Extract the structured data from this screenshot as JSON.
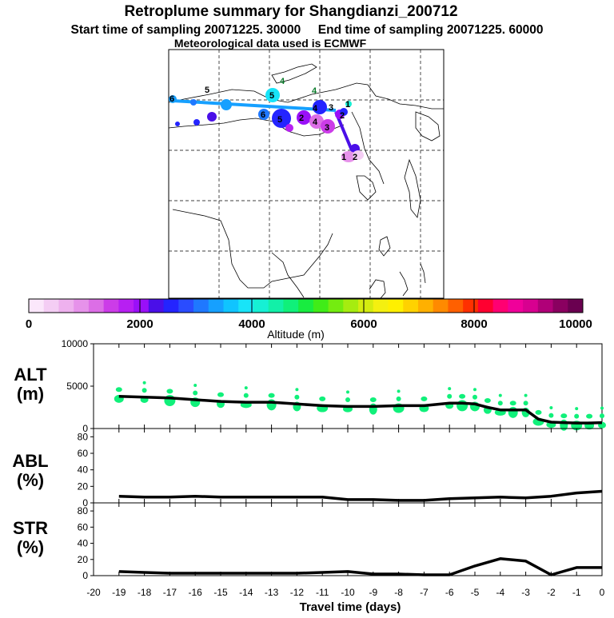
{
  "header": {
    "title": "Retroplume summary for Shangdianzi_200712",
    "line2": "Start time of sampling 20071225. 30000     End time of sampling 20071225. 60000",
    "line3": "Meteorological data used is ECMWF"
  },
  "colorbar": {
    "label": "Altitude  (m)",
    "ticks": [
      "0",
      "2000",
      "4000",
      "6000",
      "8000",
      "10000"
    ],
    "colors": [
      "#fbe7fb",
      "#f4cdf4",
      "#eeb1ee",
      "#e692ea",
      "#dc6ee6",
      "#cc3ce8",
      "#b71ff2",
      "#9a10f8",
      "#4a0fe8",
      "#2424ff",
      "#2a4cff",
      "#1f78ff",
      "#16a0ff",
      "#10c4ff",
      "#18e4f8",
      "#16f0d4",
      "#12f0a8",
      "#10f07a",
      "#18ec40",
      "#40ec18",
      "#74ec10",
      "#a6ec10",
      "#d4ec10",
      "#f4f010",
      "#fff000",
      "#ffd200",
      "#ffb000",
      "#ff8a00",
      "#ff6000",
      "#ff3000",
      "#ff0030",
      "#ff0072",
      "#f0009a",
      "#d80090",
      "#b00078",
      "#8a0060",
      "#6a0050"
    ]
  },
  "map": {
    "track_labels": [
      "6",
      "5",
      "4",
      "4",
      "5",
      "6",
      "3",
      "2",
      "1",
      "2",
      "4",
      "4",
      "5",
      "3",
      "1",
      "2"
    ]
  },
  "panels": {
    "alt": {
      "label_top": "ALT",
      "label_bottom": "(m)"
    },
    "abl": {
      "label_top": "ABL",
      "label_bottom": "(%)"
    },
    "str": {
      "label_top": "STR",
      "label_bottom": "(%)"
    }
  },
  "chart_data": [
    {
      "type": "line",
      "panel": "alt",
      "xlabel": "Travel time (days)",
      "ylabel": "ALT (m)",
      "xlim": [
        -20,
        0
      ],
      "ylim": [
        0,
        10000
      ],
      "y_ticks": [
        "0",
        "5000",
        "10000"
      ],
      "x": [
        0,
        -0.5,
        -1,
        -1.5,
        -2,
        -2.5,
        -3,
        -3.5,
        -4,
        -4.5,
        -5,
        -5.5,
        -6,
        -7,
        -8,
        -9,
        -10,
        -11,
        -12,
        -13,
        -14,
        -15,
        -16,
        -17,
        -18,
        -19
      ],
      "values": [
        700,
        650,
        650,
        700,
        750,
        1100,
        2200,
        2200,
        2200,
        2500,
        2900,
        3000,
        3000,
        2700,
        2700,
        2600,
        2600,
        2700,
        2900,
        3100,
        3100,
        3200,
        3400,
        3600,
        3700,
        3800
      ],
      "scatter_color": "#10f07a"
    },
    {
      "type": "line",
      "panel": "abl",
      "ylabel": "ABL (%)",
      "xlim": [
        -20,
        0
      ],
      "ylim": [
        0,
        90
      ],
      "y_ticks": [
        "0",
        "20",
        "40",
        "60",
        "80"
      ],
      "x": [
        0,
        -1,
        -2,
        -3,
        -4,
        -5,
        -6,
        -7,
        -8,
        -9,
        -10,
        -11,
        -12,
        -13,
        -14,
        -15,
        -16,
        -17,
        -18,
        -19
      ],
      "values": [
        14,
        12,
        8,
        6,
        7,
        6,
        5,
        3,
        3,
        4,
        4,
        7,
        7,
        7,
        7,
        7,
        8,
        7,
        7,
        8
      ]
    },
    {
      "type": "line",
      "panel": "str",
      "ylabel": "STR (%)",
      "xlim": [
        -20,
        0
      ],
      "ylim": [
        0,
        90
      ],
      "y_ticks": [
        "0",
        "20",
        "40",
        "60",
        "80"
      ],
      "x": [
        0,
        -1,
        -2,
        -3,
        -4,
        -5,
        -6,
        -7,
        -8,
        -9,
        -10,
        -11,
        -12,
        -13,
        -14,
        -15,
        -16,
        -17,
        -18,
        -19
      ],
      "values": [
        10,
        10,
        1,
        18,
        21,
        12,
        1,
        1,
        2,
        2,
        5,
        4,
        3,
        3,
        3,
        3,
        3,
        3,
        4,
        5
      ]
    }
  ],
  "x_axis": {
    "ticks": [
      "-20",
      "-19",
      "-18",
      "-17",
      "-16",
      "-15",
      "-14",
      "-13",
      "-12",
      "-11",
      "-10",
      "-9",
      "-8",
      "-7",
      "-6",
      "-5",
      "-4",
      "-3",
      "-2",
      "-1",
      "0"
    ]
  }
}
